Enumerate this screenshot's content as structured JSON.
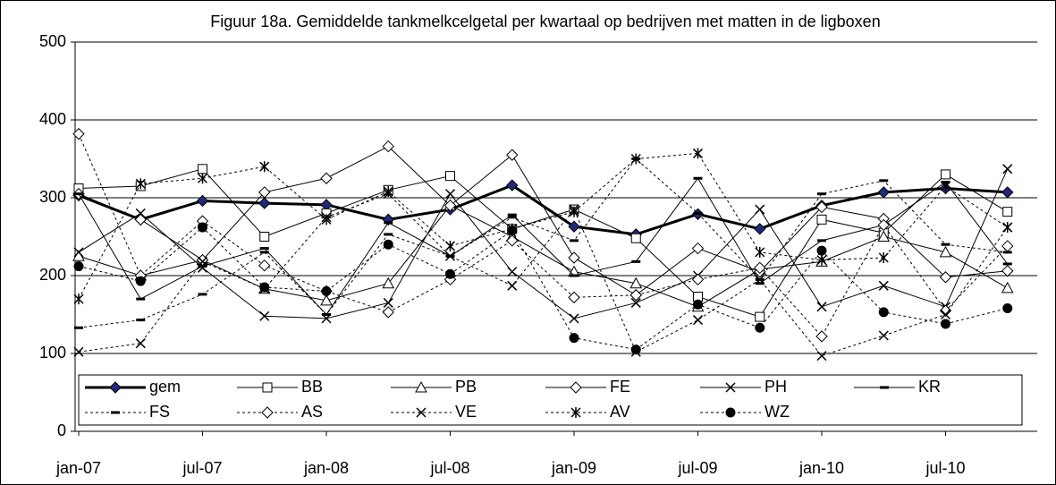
{
  "chart_data": {
    "type": "line",
    "title": "Figuur 18a. Gemiddelde tankmelkcelgetal per kwartaal op bedrijven met matten in de ligboxen",
    "categories": [
      "jan-07",
      null,
      "jul-07",
      null,
      "jan-08",
      null,
      "jul-08",
      null,
      "jan-09",
      null,
      "jul-09",
      null,
      "jan-10",
      null,
      "jul-10",
      null
    ],
    "ylim": [
      0,
      500
    ],
    "yticks": [
      0,
      100,
      200,
      300,
      400,
      500
    ],
    "grid": true,
    "series": [
      {
        "name": "gem",
        "color": "#000000",
        "marker": "diamond",
        "marker_fill": "#1f2a7a",
        "dash": "solid",
        "width": 3,
        "values": [
          303,
          272,
          296,
          293,
          291,
          272,
          285,
          316,
          263,
          253,
          279,
          260,
          290,
          307,
          312,
          307
        ]
      },
      {
        "name": "BB",
        "color": "#000000",
        "marker": "square",
        "marker_fill": "#ffffff",
        "dash": "solid",
        "width": 1,
        "values": [
          312,
          315,
          337,
          250,
          280,
          310,
          328,
          260,
          285,
          248,
          173,
          147,
          272,
          255,
          330,
          282
        ]
      },
      {
        "name": "PB",
        "color": "#000000",
        "marker": "triangle",
        "marker_fill": "#ffffff",
        "dash": "solid",
        "width": 1,
        "values": [
          225,
          200,
          220,
          183,
          168,
          190,
          290,
          250,
          205,
          190,
          160,
          208,
          218,
          250,
          230,
          184
        ]
      },
      {
        "name": "FE",
        "color": "#000000",
        "marker": "diamond",
        "marker_fill": "#ffffff",
        "dash": "solid",
        "width": 1,
        "values": [
          305,
          272,
          220,
          307,
          325,
          366,
          290,
          355,
          223,
          175,
          235,
          205,
          288,
          273,
          198,
          206
        ]
      },
      {
        "name": "PH",
        "color": "#000000",
        "marker": "x",
        "marker_fill": "none",
        "dash": "solid",
        "width": 1,
        "values": [
          230,
          280,
          210,
          148,
          145,
          165,
          305,
          205,
          145,
          165,
          200,
          285,
          160,
          187,
          160,
          337
        ]
      },
      {
        "name": "KR",
        "color": "#000000",
        "marker": "dash",
        "marker_fill": "none",
        "dash": "solid",
        "width": 1,
        "values": [
          305,
          170,
          212,
          235,
          150,
          268,
          225,
          278,
          200,
          218,
          325,
          190,
          245,
          265,
          320,
          215
        ]
      },
      {
        "name": "FS",
        "color": "#000000",
        "marker": "dash",
        "marker_fill": "none",
        "dash": "dotted",
        "width": 1,
        "values": [
          133,
          143,
          176,
          230,
          150,
          253,
          225,
          275,
          245,
          350,
          280,
          195,
          305,
          322,
          240,
          230
        ]
      },
      {
        "name": "AS",
        "color": "#000000",
        "marker": "diamond",
        "marker_fill": "#ffffff",
        "dash": "dotted",
        "width": 1,
        "values": [
          382,
          200,
          270,
          213,
          180,
          153,
          195,
          245,
          172,
          175,
          195,
          210,
          122,
          265,
          155,
          238
        ]
      },
      {
        "name": "VE",
        "color": "#000000",
        "marker": "x",
        "marker_fill": "none",
        "dash": "dotted",
        "width": 1,
        "values": [
          102,
          113,
          218,
          183,
          275,
          305,
          225,
          187,
          285,
          102,
          143,
          195,
          97,
          123,
          150,
          262
        ]
      },
      {
        "name": "AV",
        "color": "#000000",
        "marker": "star",
        "marker_fill": "none",
        "dash": "dotted",
        "width": 1,
        "values": [
          170,
          318,
          325,
          340,
          272,
          308,
          238,
          260,
          282,
          350,
          357,
          230,
          220,
          223,
          315,
          262
        ]
      },
      {
        "name": "WZ",
        "color": "#000000",
        "marker": "circle",
        "marker_fill": "#000000",
        "dash": "dotted",
        "width": 1,
        "values": [
          212,
          193,
          262,
          185,
          180,
          240,
          202,
          258,
          120,
          105,
          163,
          133,
          232,
          153,
          138,
          158
        ]
      }
    ]
  }
}
